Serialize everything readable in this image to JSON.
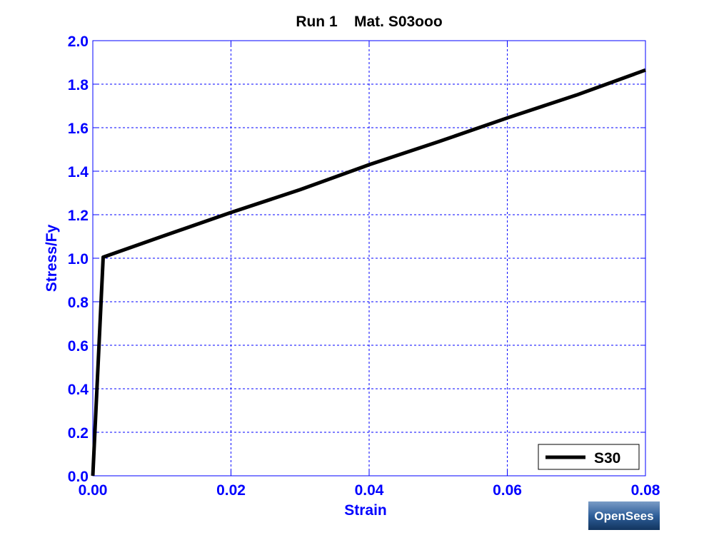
{
  "chart_data": {
    "type": "line",
    "title": "Run 1    Mat. S03ooo",
    "xlabel": "Strain",
    "ylabel": "Stress/Fy",
    "xlim": [
      0,
      0.08
    ],
    "ylim": [
      0,
      2.0
    ],
    "xticks": [
      0,
      0.02,
      0.04,
      0.06,
      0.08
    ],
    "xtick_labels": [
      "0.00",
      "0.02",
      "0.04",
      "0.06",
      "0.08"
    ],
    "yticks": [
      0,
      0.2,
      0.4,
      0.6,
      0.8,
      1.0,
      1.2,
      1.4,
      1.6,
      1.8,
      2.0
    ],
    "ytick_labels": [
      "0.0",
      "0.2",
      "0.4",
      "0.6",
      "0.8",
      "1.0",
      "1.2",
      "1.4",
      "1.6",
      "1.8",
      "2.0"
    ],
    "grid": true,
    "legend_position": "bottom-right",
    "series": [
      {
        "name": "S30",
        "color": "#000000",
        "x": [
          0,
          0.0015,
          0.01,
          0.02,
          0.03,
          0.04,
          0.05,
          0.06,
          0.07,
          0.08
        ],
        "y": [
          0,
          1.005,
          1.1,
          1.21,
          1.315,
          1.43,
          1.535,
          1.645,
          1.75,
          1.865
        ]
      }
    ]
  },
  "logo": {
    "text": "OpenSees"
  },
  "colors": {
    "axis": "#0000ff",
    "grid": "#0000ff",
    "line": "#000000"
  }
}
